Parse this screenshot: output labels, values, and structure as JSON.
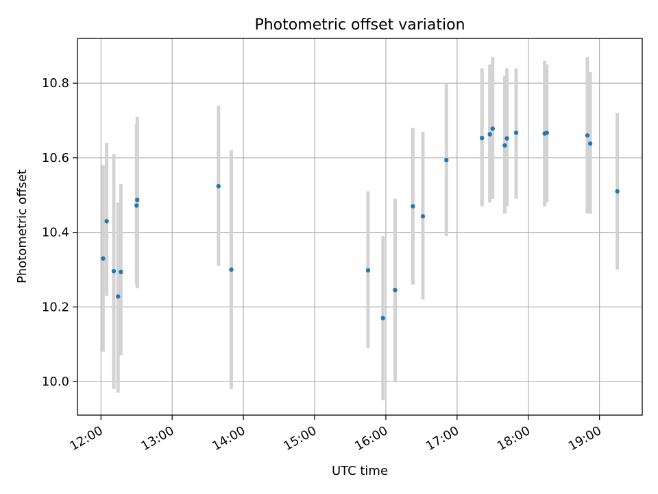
{
  "chart_data": {
    "type": "scatter",
    "title": "Photometric offset variation",
    "xlabel": "UTC time",
    "ylabel": "Photometric offset",
    "x_unit": "hours UTC",
    "xlim": [
      11.67,
      19.6
    ],
    "ylim": [
      9.91,
      10.92
    ],
    "x_ticks": [
      {
        "value": 12,
        "label": "12:00"
      },
      {
        "value": 13,
        "label": "13:00"
      },
      {
        "value": 14,
        "label": "14:00"
      },
      {
        "value": 15,
        "label": "15:00"
      },
      {
        "value": 16,
        "label": "16:00"
      },
      {
        "value": 17,
        "label": "17:00"
      },
      {
        "value": 18,
        "label": "18:00"
      },
      {
        "value": 19,
        "label": "19:00"
      }
    ],
    "y_ticks": [
      {
        "value": 10.0,
        "label": "10.0"
      },
      {
        "value": 10.2,
        "label": "10.2"
      },
      {
        "value": 10.4,
        "label": "10.4"
      },
      {
        "value": 10.6,
        "label": "10.6"
      },
      {
        "value": 10.8,
        "label": "10.8"
      }
    ],
    "grid": true,
    "colors": {
      "point": "#1f77b4",
      "errorbar": "#d3d3d3",
      "grid": "#b0b0b0"
    },
    "points": [
      {
        "x": 12.03,
        "y": 10.33,
        "ylow": 10.08,
        "yhigh": 10.58
      },
      {
        "x": 12.08,
        "y": 10.43,
        "ylow": 10.23,
        "yhigh": 10.64
      },
      {
        "x": 12.18,
        "y": 10.296,
        "ylow": 9.98,
        "yhigh": 10.61
      },
      {
        "x": 12.24,
        "y": 10.228,
        "ylow": 9.97,
        "yhigh": 10.48
      },
      {
        "x": 12.28,
        "y": 10.294,
        "ylow": 10.07,
        "yhigh": 10.53
      },
      {
        "x": 12.5,
        "y": 10.472,
        "ylow": 10.26,
        "yhigh": 10.69
      },
      {
        "x": 12.51,
        "y": 10.487,
        "ylow": 10.25,
        "yhigh": 10.71
      },
      {
        "x": 13.65,
        "y": 10.524,
        "ylow": 10.31,
        "yhigh": 10.74
      },
      {
        "x": 13.83,
        "y": 10.3,
        "ylow": 9.98,
        "yhigh": 10.62
      },
      {
        "x": 15.75,
        "y": 10.298,
        "ylow": 10.09,
        "yhigh": 10.51
      },
      {
        "x": 15.96,
        "y": 10.17,
        "ylow": 9.95,
        "yhigh": 10.39
      },
      {
        "x": 16.13,
        "y": 10.245,
        "ylow": 10.0,
        "yhigh": 10.49
      },
      {
        "x": 16.38,
        "y": 10.47,
        "ylow": 10.26,
        "yhigh": 10.68
      },
      {
        "x": 16.52,
        "y": 10.443,
        "ylow": 10.22,
        "yhigh": 10.67
      },
      {
        "x": 16.85,
        "y": 10.594,
        "ylow": 10.39,
        "yhigh": 10.8
      },
      {
        "x": 17.35,
        "y": 10.653,
        "ylow": 10.47,
        "yhigh": 10.84
      },
      {
        "x": 17.46,
        "y": 10.663,
        "ylow": 10.48,
        "yhigh": 10.85
      },
      {
        "x": 17.5,
        "y": 10.678,
        "ylow": 10.49,
        "yhigh": 10.87
      },
      {
        "x": 17.67,
        "y": 10.633,
        "ylow": 10.45,
        "yhigh": 10.82
      },
      {
        "x": 17.7,
        "y": 10.652,
        "ylow": 10.47,
        "yhigh": 10.84
      },
      {
        "x": 17.83,
        "y": 10.667,
        "ylow": 10.49,
        "yhigh": 10.84
      },
      {
        "x": 18.23,
        "y": 10.665,
        "ylow": 10.47,
        "yhigh": 10.86
      },
      {
        "x": 18.26,
        "y": 10.667,
        "ylow": 10.48,
        "yhigh": 10.85
      },
      {
        "x": 18.83,
        "y": 10.66,
        "ylow": 10.45,
        "yhigh": 10.87
      },
      {
        "x": 18.87,
        "y": 10.638,
        "ylow": 10.45,
        "yhigh": 10.83
      },
      {
        "x": 19.25,
        "y": 10.51,
        "ylow": 10.3,
        "yhigh": 10.72
      }
    ]
  }
}
